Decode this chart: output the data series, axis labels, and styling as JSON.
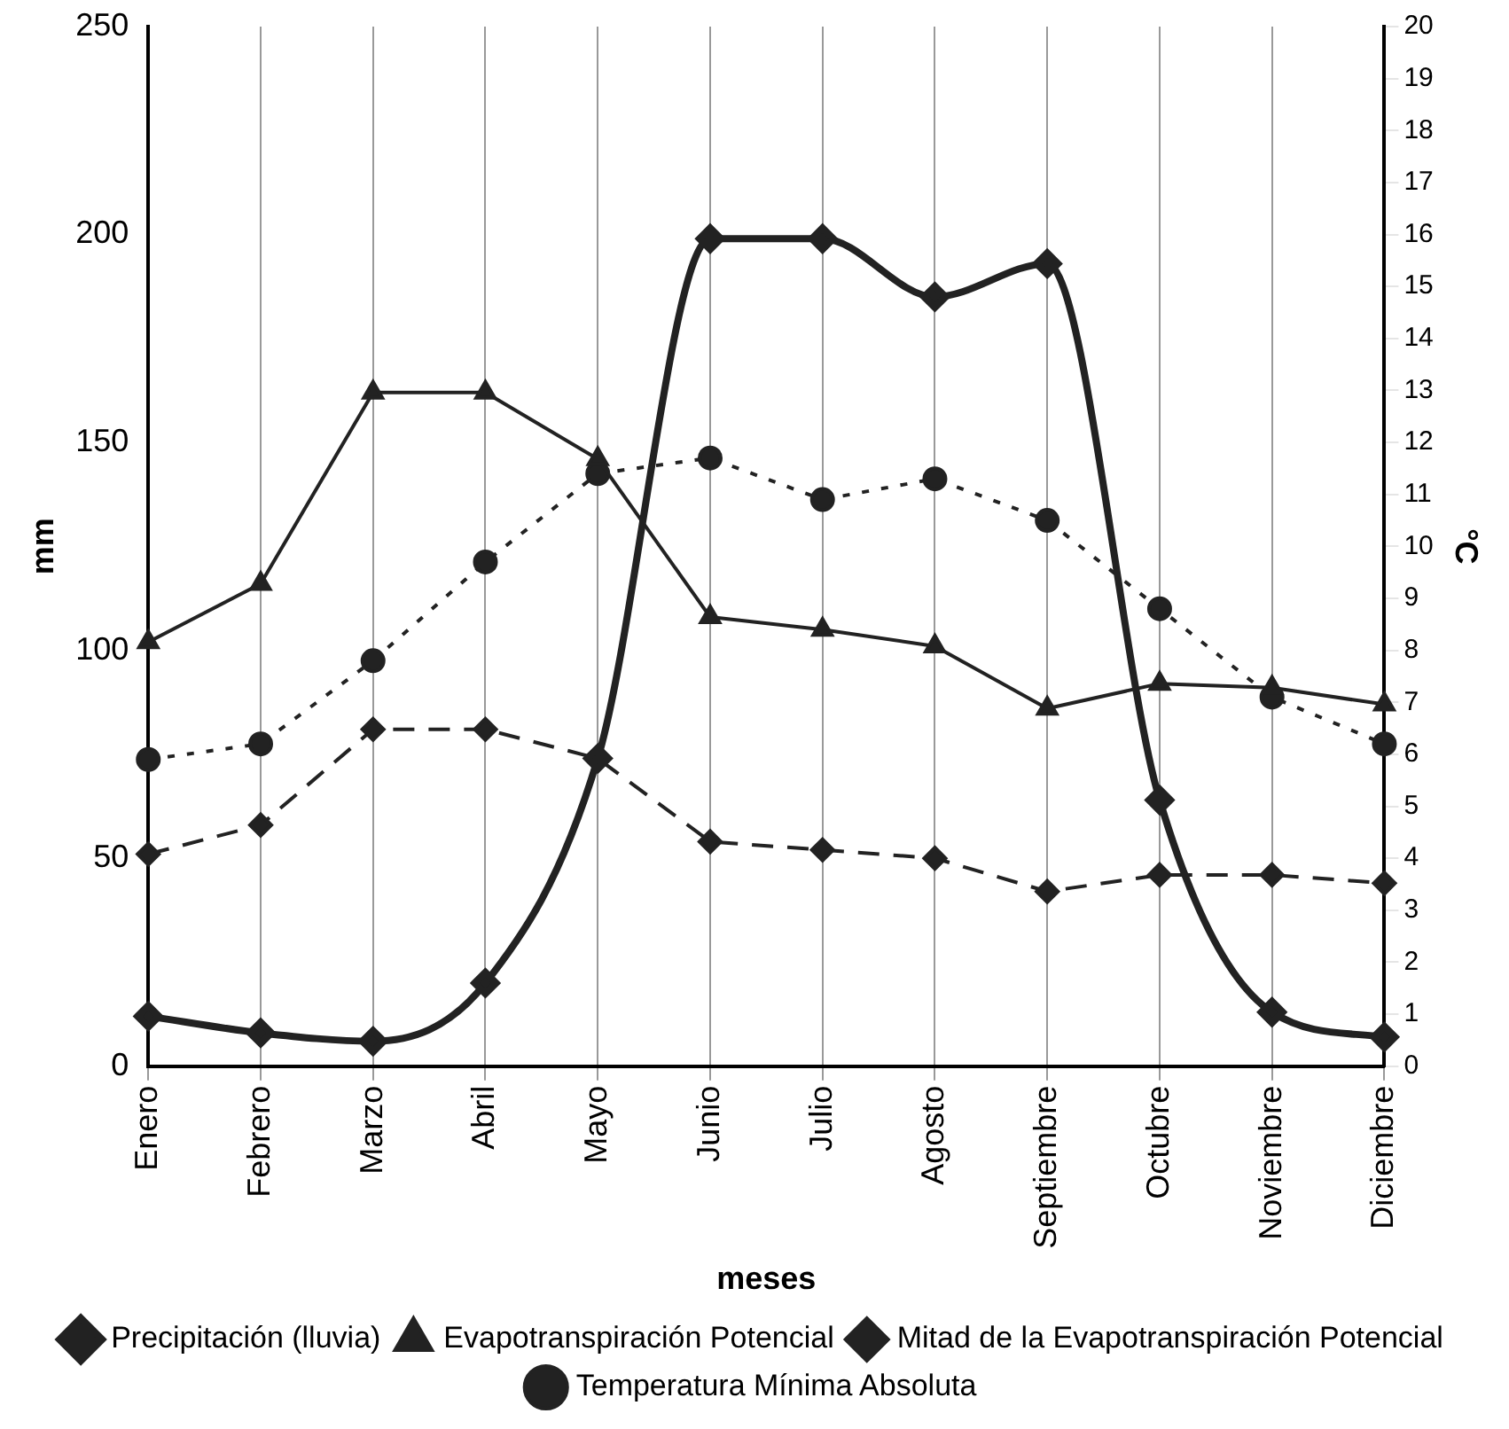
{
  "chart_data": {
    "type": "line",
    "xlabel": "meses",
    "ylabel": "mm",
    "y2label": "°C",
    "categories": [
      "Enero",
      "Febrero",
      "Marzo",
      "Abril",
      "Mayo",
      "Junio",
      "Julio",
      "Agosto",
      "Septiembre",
      "Octubre",
      "Noviembre",
      "Diciembre"
    ],
    "series": [
      {
        "name": "Precipitación (lluvia)",
        "color": "#222222",
        "marker": "diamond",
        "line_style": "solid",
        "values": [
          12,
          8,
          6,
          20,
          74,
          199,
          199,
          185,
          193,
          64,
          13,
          7
        ]
      },
      {
        "name": "Evapotranspiración Potencial",
        "color": "#222222",
        "marker": "triangle",
        "line_style": "solid",
        "values": [
          102,
          116,
          162,
          162,
          146,
          108,
          105,
          101,
          86,
          92,
          91,
          87
        ]
      },
      {
        "name": "Mitad de la Evapotranspiración Potencial",
        "color": "#222222",
        "marker": "diamond",
        "line_style": "dashed",
        "values": [
          51,
          58,
          81,
          81,
          74,
          54,
          52,
          50,
          42,
          46,
          46,
          44
        ]
      },
      {
        "name": "Temperatura Mínima Absoluta",
        "color": "#222222",
        "marker": "circle",
        "line_style": "dotted",
        "axis": "y2",
        "values": [
          5.9,
          6.2,
          7.8,
          9.7,
          11.4,
          11.7,
          10.9,
          11.3,
          10.5,
          8.8,
          7.1,
          6.2
        ]
      }
    ],
    "ylim": [
      0,
      250
    ],
    "yticks": [
      0,
      50,
      100,
      150,
      200,
      250
    ],
    "y2lim": [
      0,
      20
    ],
    "y2ticks": [
      0,
      1,
      2,
      3,
      4,
      5,
      6,
      7,
      8,
      9,
      10,
      11,
      12,
      13,
      14,
      15,
      16,
      17,
      18,
      19,
      20
    ],
    "grid": "x",
    "legend": "bottom"
  }
}
